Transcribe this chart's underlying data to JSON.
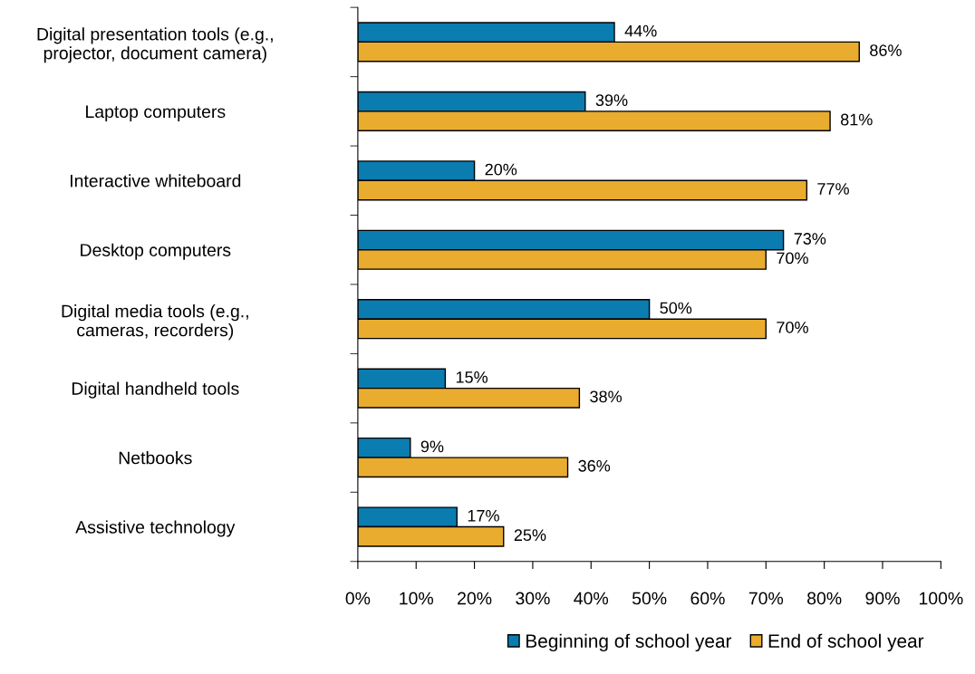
{
  "chart_data": {
    "type": "bar",
    "orientation": "horizontal",
    "categories": [
      "Digital presentation tools (e.g.,\nprojector, document camera)",
      "Laptop computers",
      "Interactive whiteboard",
      "Desktop computers",
      "Digital media tools (e.g.,\ncameras, recorders)",
      "Digital handheld tools",
      "Netbooks",
      "Assistive technology"
    ],
    "series": [
      {
        "name": "Beginning of school year",
        "color": "#0a7cb0",
        "values": [
          44,
          39,
          20,
          73,
          50,
          15,
          9,
          17
        ],
        "value_labels": [
          "44%",
          "39%",
          "20%",
          "73%",
          "50%",
          "15%",
          "9%",
          "17%"
        ]
      },
      {
        "name": "End of school year",
        "color": "#e9ac2f",
        "values": [
          86,
          81,
          77,
          70,
          70,
          38,
          36,
          25
        ],
        "value_labels": [
          "86%",
          "81%",
          "77%",
          "70%",
          "70%",
          "38%",
          "36%",
          "25%"
        ]
      }
    ],
    "xlim": [
      0,
      100
    ],
    "xticks": [
      {
        "value": 0,
        "label": "0%"
      },
      {
        "value": 10,
        "label": "10%"
      },
      {
        "value": 20,
        "label": "20%"
      },
      {
        "value": 30,
        "label": "30%"
      },
      {
        "value": 40,
        "label": "40%"
      },
      {
        "value": 50,
        "label": "50%"
      },
      {
        "value": 60,
        "label": "60%"
      },
      {
        "value": 70,
        "label": "70%"
      },
      {
        "value": 80,
        "label": "80%"
      },
      {
        "value": 90,
        "label": "90%"
      },
      {
        "value": 100,
        "label": "100%"
      }
    ],
    "grid": false,
    "legend": "bottom right"
  }
}
